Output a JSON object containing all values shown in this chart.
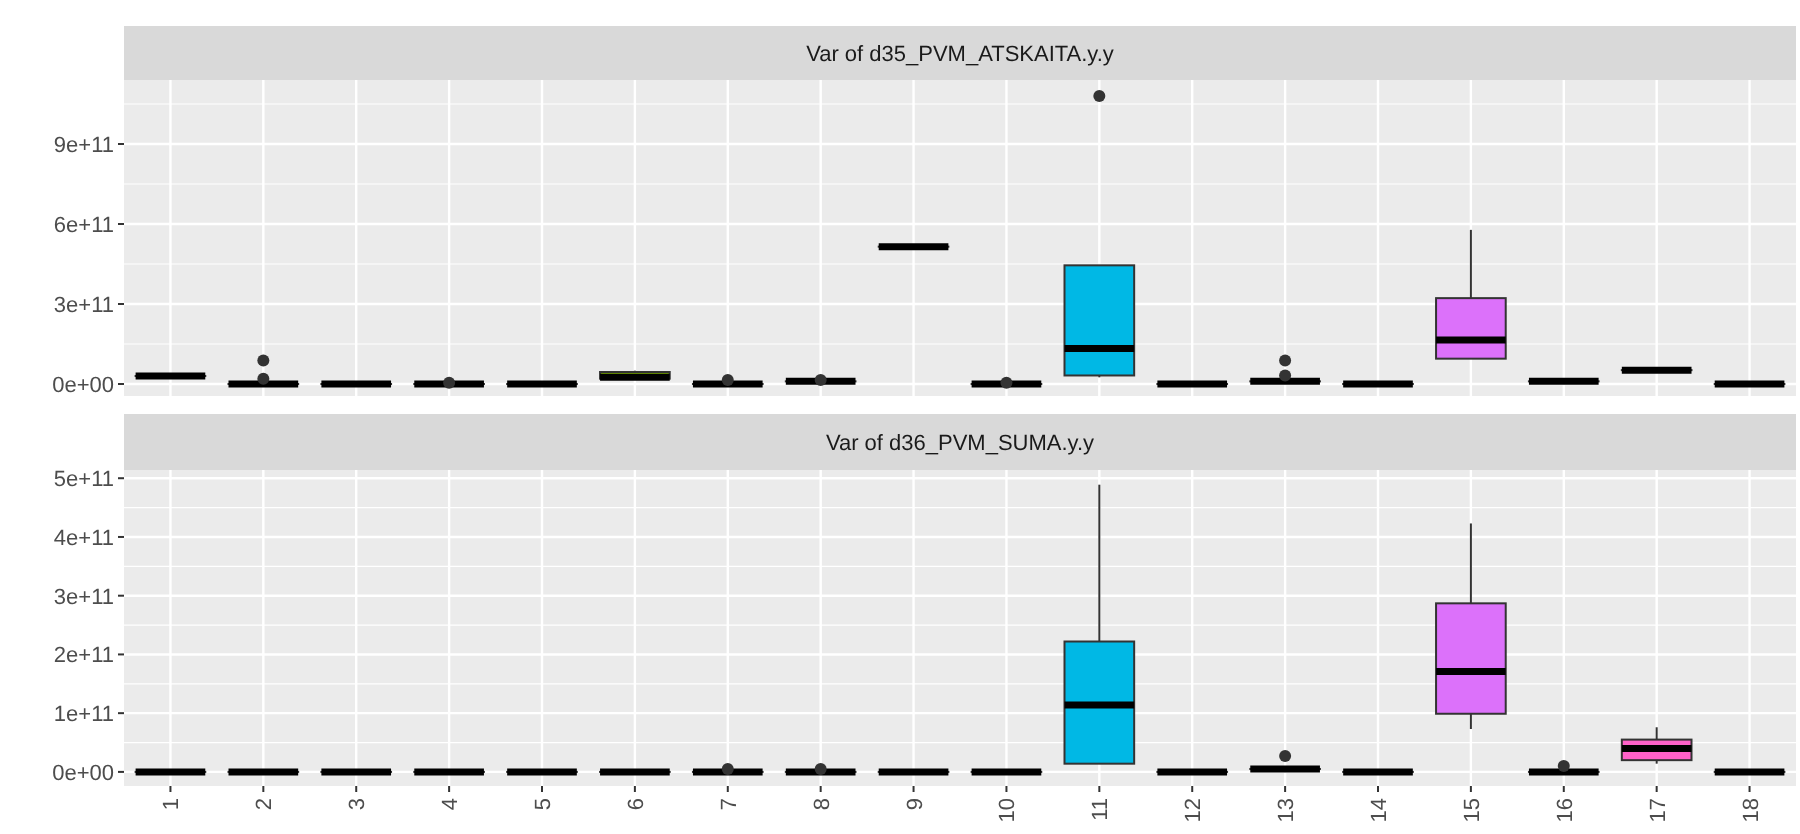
{
  "chart_data": [
    {
      "type": "box",
      "title": "Var of d35_PVM_ATSKAITA.y.y",
      "categories": [
        "1",
        "2",
        "3",
        "4",
        "5",
        "6",
        "7",
        "8",
        "9",
        "10",
        "11",
        "12",
        "13",
        "14",
        "15",
        "16",
        "17",
        "18"
      ],
      "colors": [
        "#f8766d",
        "#e58700",
        "#c99800",
        "#a3a500",
        "#6bb100",
        "#7cae00",
        "#00bf7d",
        "#00c0af",
        "#00bcd8",
        "#00b0f6",
        "#00b8e5",
        "#619cff",
        "#b983ff",
        "#e76bf3",
        "#dc71fa",
        "#fd61d1",
        "#ff61c9",
        "#ff6c91"
      ],
      "boxes": [
        {
          "low": 30000000000.0,
          "q1": 30000000000.0,
          "median": 30000000000.0,
          "q3": 30000000000.0,
          "high": 30000000000.0
        },
        {
          "low": 0,
          "q1": 0,
          "median": 0,
          "q3": 0,
          "high": 0,
          "outliers": [
            20000000000.0,
            88000000000.0
          ]
        },
        {
          "low": 0,
          "q1": 0,
          "median": 0,
          "q3": 0,
          "high": 0
        },
        {
          "low": 0,
          "q1": 0,
          "median": 0,
          "q3": 0,
          "high": 0,
          "outliers": [
            5000000000.0
          ]
        },
        {
          "low": 0,
          "q1": 0,
          "median": 0,
          "q3": 0,
          "high": 0
        },
        {
          "low": 20000000000.0,
          "q1": 20000000000.0,
          "median": 25000000000.0,
          "q3": 45000000000.0,
          "high": 50000000000.0
        },
        {
          "low": 0,
          "q1": 0,
          "median": 0,
          "q3": 0,
          "high": 0,
          "outliers": [
            15000000000.0
          ]
        },
        {
          "low": 10000000000.0,
          "q1": 10000000000.0,
          "median": 10000000000.0,
          "q3": 10000000000.0,
          "high": 10000000000.0,
          "outliers": [
            15000000000.0
          ]
        },
        {
          "low": 515000000000.0,
          "q1": 515000000000.0,
          "median": 515000000000.0,
          "q3": 515000000000.0,
          "high": 515000000000.0
        },
        {
          "low": 0,
          "q1": 0,
          "median": 0,
          "q3": 0,
          "high": 0,
          "outliers": [
            5000000000.0
          ]
        },
        {
          "low": 25000000000.0,
          "q1": 32000000000.0,
          "median": 133000000000.0,
          "q3": 445000000000.0,
          "high": 445000000000.0,
          "outliers": [
            1080000000000.0
          ]
        },
        {
          "low": 0,
          "q1": 0,
          "median": 0,
          "q3": 0,
          "high": 0
        },
        {
          "low": 10000000000.0,
          "q1": 10000000000.0,
          "median": 10000000000.0,
          "q3": 10000000000.0,
          "high": 10000000000.0,
          "outliers": [
            32000000000.0,
            88000000000.0
          ]
        },
        {
          "low": 0,
          "q1": 0,
          "median": 0,
          "q3": 0,
          "high": 0
        },
        {
          "low": 95000000000.0,
          "q1": 95000000000.0,
          "median": 165000000000.0,
          "q3": 322000000000.0,
          "high": 578000000000.0
        },
        {
          "low": 10000000000.0,
          "q1": 10000000000.0,
          "median": 10000000000.0,
          "q3": 10000000000.0,
          "high": 10000000000.0
        },
        {
          "low": 52000000000.0,
          "q1": 52000000000.0,
          "median": 52000000000.0,
          "q3": 52000000000.0,
          "high": 52000000000.0
        },
        {
          "low": 0,
          "q1": 0,
          "median": 0,
          "q3": 0,
          "high": 0
        }
      ],
      "ylim": [
        -45000000000.0,
        1140000000000.0
      ],
      "yticks": [
        {
          "value": 0,
          "label": "0e+00"
        },
        {
          "value": 300000000000.0,
          "label": "3e+11"
        },
        {
          "value": 600000000000.0,
          "label": "6e+11"
        },
        {
          "value": 900000000000.0,
          "label": "9e+11"
        }
      ],
      "grid": true,
      "tick_labels": "y"
    },
    {
      "type": "box",
      "title": "Var of d36_PVM_SUMA.y.y",
      "categories": [
        "1",
        "2",
        "3",
        "4",
        "5",
        "6",
        "7",
        "8",
        "9",
        "10",
        "11",
        "12",
        "13",
        "14",
        "15",
        "16",
        "17",
        "18"
      ],
      "colors": [
        "#f8766d",
        "#e58700",
        "#c99800",
        "#a3a500",
        "#6bb100",
        "#7cae00",
        "#00bf7d",
        "#00c0af",
        "#00bcd8",
        "#00b0f6",
        "#00b8e5",
        "#619cff",
        "#b983ff",
        "#e76bf3",
        "#dc71fa",
        "#fd61d1",
        "#ff61c9",
        "#ff6c91"
      ],
      "boxes": [
        {
          "low": 0,
          "q1": 0,
          "median": 0,
          "q3": 0,
          "high": 0
        },
        {
          "low": 0,
          "q1": 0,
          "median": 0,
          "q3": 0,
          "high": 0
        },
        {
          "low": 0,
          "q1": 0,
          "median": 0,
          "q3": 0,
          "high": 0
        },
        {
          "low": 0,
          "q1": 0,
          "median": 0,
          "q3": 0,
          "high": 0
        },
        {
          "low": 0,
          "q1": 0,
          "median": 0,
          "q3": 0,
          "high": 0
        },
        {
          "low": 0,
          "q1": 0,
          "median": 0,
          "q3": 0,
          "high": 0
        },
        {
          "low": 0,
          "q1": 0,
          "median": 0,
          "q3": 0,
          "high": 0,
          "outliers": [
            5000000000.0
          ]
        },
        {
          "low": 0,
          "q1": 0,
          "median": 0,
          "q3": 0,
          "high": 0,
          "outliers": [
            5000000000.0
          ]
        },
        {
          "low": 0,
          "q1": 0,
          "median": 0,
          "q3": 0,
          "high": 0
        },
        {
          "low": 0,
          "q1": 0,
          "median": 0,
          "q3": 0,
          "high": 0
        },
        {
          "low": 14000000000.0,
          "q1": 14000000000.0,
          "median": 114000000000.0,
          "q3": 222000000000.0,
          "high": 489000000000.0
        },
        {
          "low": 0,
          "q1": 0,
          "median": 0,
          "q3": 0,
          "high": 0
        },
        {
          "low": 5000000000.0,
          "q1": 5000000000.0,
          "median": 5000000000.0,
          "q3": 5000000000.0,
          "high": 5000000000.0,
          "outliers": [
            27000000000.0
          ]
        },
        {
          "low": 0,
          "q1": 0,
          "median": 0,
          "q3": 0,
          "high": 0
        },
        {
          "low": 73000000000.0,
          "q1": 99000000000.0,
          "median": 171000000000.0,
          "q3": 287000000000.0,
          "high": 423000000000.0
        },
        {
          "low": 0,
          "q1": 0,
          "median": 0,
          "q3": 0,
          "high": 0,
          "outliers": [
            10000000000.0
          ]
        },
        {
          "low": 14000000000.0,
          "q1": 20000000000.0,
          "median": 40000000000.0,
          "q3": 55000000000.0,
          "high": 76000000000.0
        },
        {
          "low": 0,
          "q1": 0,
          "median": 0,
          "q3": 0,
          "high": 0
        }
      ],
      "ylim": [
        -24000000000.0,
        514000000000.0
      ],
      "yticks": [
        {
          "value": 0,
          "label": "0e+00"
        },
        {
          "value": 100000000000.0,
          "label": "1e+11"
        },
        {
          "value": 200000000000.0,
          "label": "2e+11"
        },
        {
          "value": 300000000000.0,
          "label": "3e+11"
        },
        {
          "value": 400000000000.0,
          "label": "4e+11"
        },
        {
          "value": 500000000000.0,
          "label": "5e+11"
        }
      ],
      "grid": true
    }
  ]
}
